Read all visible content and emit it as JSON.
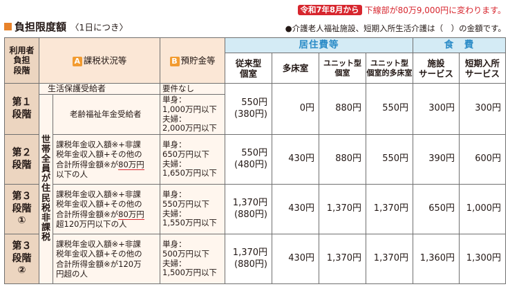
{
  "notice": {
    "tag": "令和7年8月から",
    "text": "下線部が80万9,000円に変わります。"
  },
  "title": {
    "main": "負担限度額",
    "sub": "〈1日につき〉"
  },
  "note": "●介護老人福祉施設、短期入所生活介護は（　）の金額です。",
  "headers": {
    "user_stage": [
      "利用者",
      "負担",
      "段階"
    ],
    "a_badge": "A",
    "a_label": "課税状況等",
    "b_badge": "B",
    "b_label": "預貯金等",
    "residence": "居住費等",
    "food": "食　費",
    "columns": [
      [
        "従来型",
        "個室"
      ],
      [
        "多床室"
      ],
      [
        "ユニット型",
        "個室"
      ],
      [
        "ユニット型",
        "個室的多床室"
      ],
      [
        "施設",
        "サービス"
      ],
      [
        "短期入所",
        "サービス"
      ]
    ]
  },
  "vertical_label": [
    "世",
    "帯",
    "全",
    "員",
    "が",
    "住",
    "民",
    "税",
    "非",
    "課",
    "税"
  ],
  "rows": [
    {
      "stage": [
        "第１",
        "段階"
      ],
      "sub1": {
        "cond": "生活保護受給者",
        "dep": "要件なし"
      },
      "sub2": {
        "cond": "老齢福祉年金受給者",
        "dep": [
          "単身：",
          "1,000万円以下",
          "夫婦：",
          "2,000万円以下"
        ]
      },
      "v": [
        "550円",
        "(380円)"
      ],
      "values": [
        "0円",
        "880円",
        "550円",
        "300円",
        "300円"
      ]
    },
    {
      "stage": [
        "第２",
        "段階"
      ],
      "cond": [
        "課税年金収入額※+非課",
        "税年金収入額+その他の",
        "合計所得金額※が",
        "80万円",
        "以下の人"
      ],
      "dep": [
        "単身：",
        "650万円以下",
        "夫婦：",
        "1,650万円以下"
      ],
      "v": [
        "550円",
        "(480円)"
      ],
      "values": [
        "430円",
        "880円",
        "550円",
        "390円",
        "600円"
      ]
    },
    {
      "stage": [
        "第３",
        "段階",
        "①"
      ],
      "cond": [
        "課税年金収入額※+非課",
        "税年金収入額+その他の",
        "合計所得金額※が",
        "80万円",
        "超120万円以下の人"
      ],
      "dep": [
        "単身：",
        "550万円以下",
        "夫婦：",
        "1,550万円以下"
      ],
      "v": [
        "1,370円",
        "(880円)"
      ],
      "values": [
        "430円",
        "1,370円",
        "1,370円",
        "650円",
        "1,000円"
      ]
    },
    {
      "stage": [
        "第３",
        "段階",
        "②"
      ],
      "cond": [
        "課税年金収入額※+非課",
        "税年金収入額+その他の",
        "合計所得金額※が120万",
        "円超の人"
      ],
      "dep": [
        "単身：",
        "500万円以下",
        "夫婦：",
        "1,500万円以下"
      ],
      "v": [
        "1,370円",
        "(880円)"
      ],
      "values": [
        "430円",
        "1,370円",
        "1,370円",
        "1,360円",
        "1,300円"
      ]
    }
  ],
  "colors": {
    "accent_red": "#d7262e",
    "orange": "#f29b30",
    "blue": "#2a8bc7",
    "beige": "#ecd5c0"
  }
}
